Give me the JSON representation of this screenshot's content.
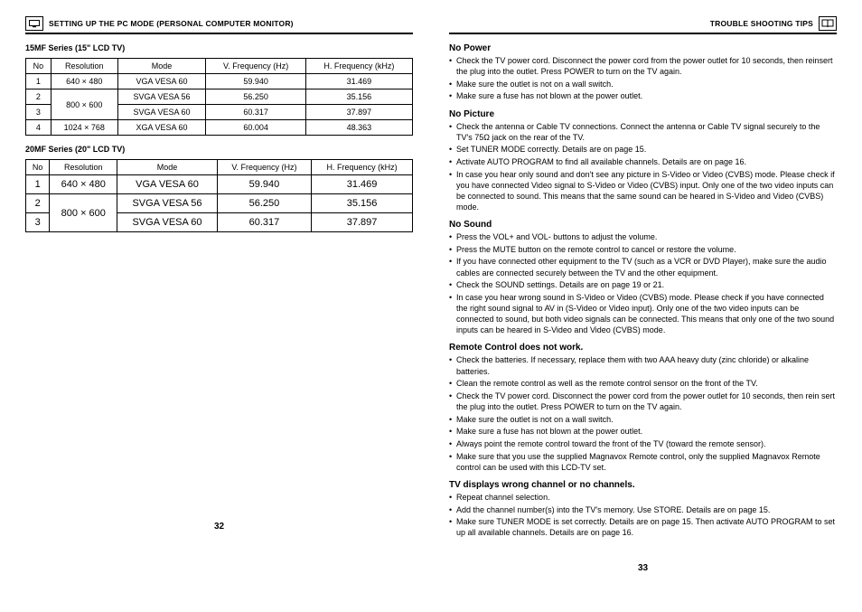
{
  "left": {
    "header": "SETTING UP THE PC MODE (PERSONAL COMPUTER MONITOR)",
    "icon": "monitor-icon",
    "pagenum": "32",
    "table15": {
      "title": "15MF Series (15\" LCD TV)",
      "columns": [
        "No",
        "Resolution",
        "Mode",
        "V. Frequency (Hz)",
        "H. Frequency (kHz)"
      ],
      "rows": [
        {
          "no": "1",
          "res": "640 × 480",
          "mode": "VGA VESA 60",
          "v": "59.940",
          "h": "31.469"
        },
        {
          "no": "2",
          "res": "",
          "mode": "SVGA VESA 56",
          "v": "56.250",
          "h": "35.156"
        },
        {
          "no": "3",
          "res": "800 × 600",
          "mode": "SVGA VESA 60",
          "v": "60.317",
          "h": "37.897"
        },
        {
          "no": "4",
          "res": "1024 × 768",
          "mode": "XGA  VESA  60",
          "v": "60.004",
          "h": "48.363"
        }
      ]
    },
    "table20": {
      "title": "20MF Series (20\" LCD TV)",
      "columns": [
        "No",
        "Resolution",
        "Mode",
        "V. Frequency (Hz)",
        "H. Frequency (kHz)"
      ],
      "rows": [
        {
          "no": "1",
          "res": "640 × 480",
          "mode": "VGA VESA 60",
          "v": "59.940",
          "h": "31.469"
        },
        {
          "no": "2",
          "res": "",
          "mode": "SVGA VESA 56",
          "v": "56.250",
          "h": "35.156"
        },
        {
          "no": "3",
          "res": "800 × 600",
          "mode": "SVGA VESA 60",
          "v": "60.317",
          "h": "37.897"
        }
      ]
    }
  },
  "right": {
    "header": "TROUBLE SHOOTING TIPS",
    "icon": "book-icon",
    "pagenum": "33",
    "sections": [
      {
        "title": "No Power",
        "items": [
          "Check the TV power cord. Disconnect the power cord from the power outlet for 10 seconds, then reinsert the plug into the outlet. Press POWER to turn on the TV again.",
          "Make sure the outlet is not on a wall switch.",
          "Make sure a fuse has not blown at the power outlet."
        ]
      },
      {
        "title": "No Picture",
        "items": [
          "Check the antenna or Cable TV connections. Connect the antenna or Cable TV signal securely to the TV's 75Ω jack on the rear of the TV.",
          "Set TUNER MODE correctly. Details are on page 15.",
          "Activate AUTO PROGRAM to find all available channels. Details are on page 16.",
          "In case you hear only sound and don't see any picture in S-Video or Video (CVBS) mode. Please check if you have connected Video signal to S-Video or Video (CVBS) input. Only one of the two video inputs can be connected to sound. This means that the same sound can be heared in S-Video and Video (CVBS) mode."
        ]
      },
      {
        "title": "No Sound",
        "items": [
          "Press the VOL+ and VOL- buttons to adjust the volume.",
          "Press the MUTE button on the remote control to cancel or restore the volume.",
          "If you have connected other equipment to the TV (such as a VCR or DVD Player), make sure the audio cables are connected securely between the TV and the other equipment.",
          "Check the SOUND settings. Details are on page 19 or 21.",
          "In case you hear wrong sound in S-Video or Video (CVBS) mode. Please check if you have connected the right sound signal to AV in (S-Video or Video input). Only one of the two video inputs can be connected to sound, but both video signals can be connected. This means that only one of the two sound inputs can be heared in S-Video and Video (CVBS) mode."
        ]
      },
      {
        "title": "Remote Control does not work.",
        "items": [
          "Check the batteries. If necessary, replace them with two AAA heavy duty (zinc chloride) or alkaline batteries.",
          "Clean the remote control as well as the remote control sensor on the front of the TV.",
          "Check the TV power cord. Disconnect the power cord from the power outlet for 10 seconds, then rein sert the plug into the outlet. Press POWER to turn on the TV again.",
          "Make sure the outlet is not on a wall switch.",
          "Make sure a fuse has not blown at the power outlet.",
          "Always point the remote control toward the front of the TV (toward the remote sensor).",
          "Make sure that you use the supplied Magnavox Remote control, only the supplied Magnavox Remote control can be used with this LCD-TV set."
        ]
      },
      {
        "title": "TV displays wrong channel or no channels.",
        "items": [
          "Repeat channel selection.",
          "Add the channel number(s) into the TV's memory. Use STORE. Details are on page 15.",
          "Make sure TUNER MODE is set correctly. Details are on page 15.\nThen activate AUTO PROGRAM to set up all available channels. Details are on page 16."
        ]
      }
    ]
  }
}
